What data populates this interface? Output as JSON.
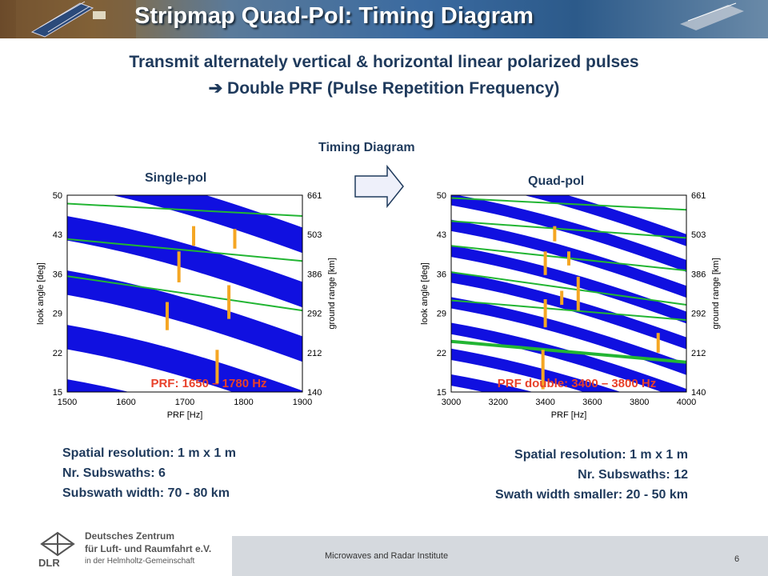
{
  "slide": {
    "title": "Stripmap Quad-Pol: Timing Diagram",
    "subtitle_line1": "Transmit alternately vertical & horizontal linear polarized pulses",
    "subtitle_line2": "➔ Double PRF (Pulse Repetition Frequency)",
    "center_label": "Timing Diagram",
    "page_number": "6"
  },
  "colors": {
    "band": "#1010e0",
    "line": "#22b533",
    "marker": "#f5a623",
    "red": "#e8402a",
    "title": "#1f3a5c"
  },
  "icons": [
    "satellite-icon",
    "right-arrow-icon",
    "dlr-logo-icon"
  ],
  "left_panel": {
    "heading": "Single-pol",
    "prf_label": "PRF: 1650 – 1780 Hz",
    "info": [
      "Spatial resolution: 1 m x 1 m",
      "Nr. Subswaths: 6",
      "Subswath width: 70 - 80 km"
    ]
  },
  "right_panel": {
    "heading": "Quad-pol",
    "prf_label": "PRF double: 3400 – 3800 Hz",
    "info": [
      "Spatial resolution: 1 m x 1 m",
      "Nr. Subswaths: 12",
      "Swath width smaller: 20 - 50 km"
    ]
  },
  "footer": {
    "institute": "Microwaves and Radar Institute",
    "logo_line1": "Deutsches Zentrum",
    "logo_line2": "für Luft- und Raumfahrt e.V.",
    "logo_line3": "in der Helmholtz-Gemeinschaft",
    "logo_abbrev": "DLR"
  },
  "chart_data": [
    {
      "type": "line",
      "xlabel": "PRF [Hz]",
      "ylabel": "look angle [deg]",
      "y2label": "ground range [km]",
      "xlim": [
        1500,
        1900
      ],
      "ylim": [
        15,
        50
      ],
      "x_ticks": [
        "1500",
        "1600",
        "1700",
        "1800",
        "1900"
      ],
      "y_ticks": [
        "50",
        "43",
        "36",
        "29",
        "22",
        "15"
      ],
      "y2_ticks": [
        "661",
        "503",
        "386",
        "292",
        "212",
        "140"
      ],
      "swath_lines_at_1500": [
        48.5,
        42.2,
        35.6
      ],
      "swath_lines_at_1900": [
        46.3,
        38.3,
        29.5
      ],
      "markers": [
        {
          "x": 1670,
          "y_from": 26,
          "y_to": 31
        },
        {
          "x": 1690,
          "y_from": 34.5,
          "y_to": 40
        },
        {
          "x": 1715,
          "y_from": 41,
          "y_to": 44.5
        },
        {
          "x": 1755,
          "y_from": 16.5,
          "y_to": 22.5
        },
        {
          "x": 1775,
          "y_from": 28,
          "y_to": 34
        },
        {
          "x": 1785,
          "y_from": 40.5,
          "y_to": 44
        }
      ]
    },
    {
      "type": "line",
      "xlabel": "PRF [Hz]",
      "ylabel": "look angle [deg]",
      "y2label": "ground range [km]",
      "xlim": [
        3000,
        4000
      ],
      "ylim": [
        15,
        50
      ],
      "x_ticks": [
        "3000",
        "3200",
        "3400",
        "3600",
        "3800",
        "4000"
      ],
      "y_ticks": [
        "50",
        "43",
        "36",
        "29",
        "22",
        "15"
      ],
      "y2_ticks": [
        "661",
        "503",
        "386",
        "292",
        "212",
        "140"
      ],
      "swath_lines_at_3000": [
        49.5,
        45.4,
        41.0,
        36.3,
        31.3,
        24.0
      ],
      "swath_lines_at_4000": [
        47.4,
        42.4,
        36.6,
        30.5,
        27.8,
        20.3
      ],
      "markers": [
        {
          "x": 3390,
          "y_from": 15.5,
          "y_to": 22.5
        },
        {
          "x": 3400,
          "y_from": 26.5,
          "y_to": 31.5
        },
        {
          "x": 3400,
          "y_from": 35.8,
          "y_to": 40
        },
        {
          "x": 3440,
          "y_from": 41.8,
          "y_to": 44.5
        },
        {
          "x": 3470,
          "y_from": 30.5,
          "y_to": 33
        },
        {
          "x": 3500,
          "y_from": 37.5,
          "y_to": 40
        },
        {
          "x": 3540,
          "y_from": 29.5,
          "y_to": 35.5
        },
        {
          "x": 3880,
          "y_from": 22,
          "y_to": 25.5
        }
      ]
    }
  ]
}
